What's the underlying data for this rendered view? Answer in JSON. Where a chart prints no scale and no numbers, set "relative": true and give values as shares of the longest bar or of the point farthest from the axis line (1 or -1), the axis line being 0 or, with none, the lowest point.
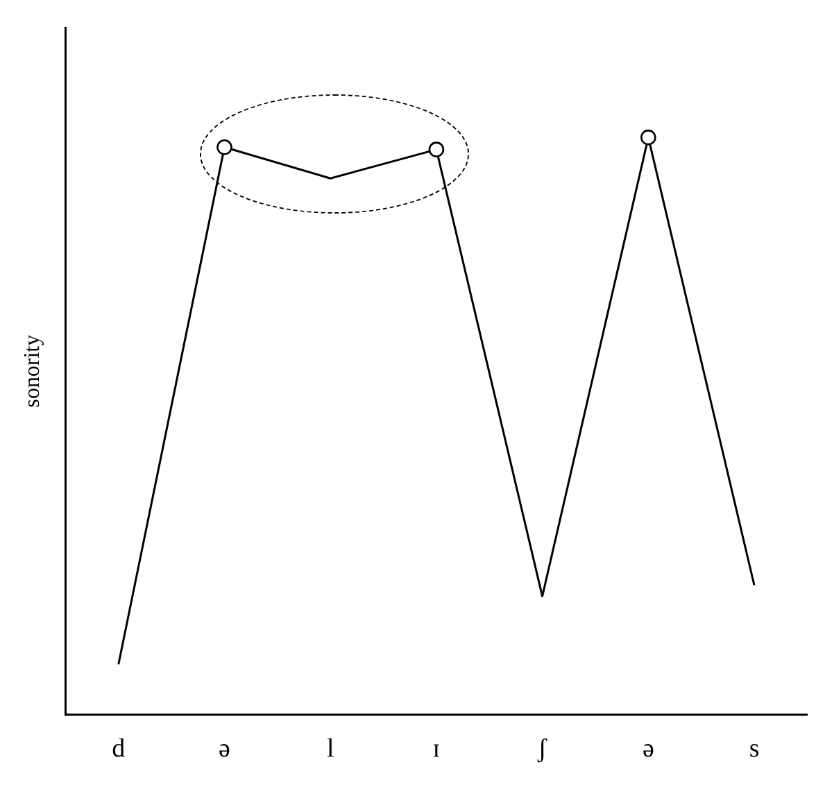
{
  "chart_data": {
    "type": "line",
    "ylabel": "sonority",
    "relative": true,
    "grid": false,
    "legend": false,
    "categories": [
      "d",
      "ə",
      "l",
      "ɪ",
      "ʃ",
      "ə",
      "s"
    ],
    "series": [
      {
        "color": "#000000",
        "marker": "none",
        "values": [
          0.087,
          0.983,
          0.929,
          0.979,
          0.205,
          1,
          0.224
        ]
      },
      {
        "type": "scatter",
        "color": "#000000",
        "marker": "circle",
        "values": [
          null,
          0.983,
          null,
          0.979,
          null,
          1,
          null
        ]
      }
    ]
  }
}
